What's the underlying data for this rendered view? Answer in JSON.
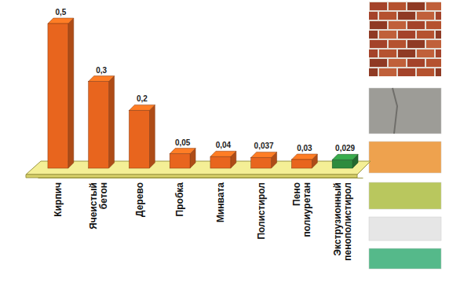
{
  "chart_data": {
    "type": "bar",
    "categories": [
      "Кирпич",
      "Ячеистый бетон",
      "Дерево",
      "Пробка",
      "Минвата",
      "Полистирол",
      "Пено полиуретан",
      "Экструзионный пенополистирол"
    ],
    "values": [
      0.5,
      0.3,
      0.2,
      0.05,
      0.04,
      0.037,
      0.03,
      0.029
    ],
    "value_labels": [
      "0,5",
      "0,3",
      "0,2",
      "0,05",
      "0,04",
      "0,037",
      "0,03",
      "0,029"
    ],
    "colors": [
      "#e8651e",
      "#e8651e",
      "#e8651e",
      "#e8651e",
      "#e8651e",
      "#e8651e",
      "#e8651e",
      "#2e8b3e"
    ],
    "ylim": [
      0,
      0.5
    ],
    "data_labels": true,
    "tick_labels": "x"
  }
}
